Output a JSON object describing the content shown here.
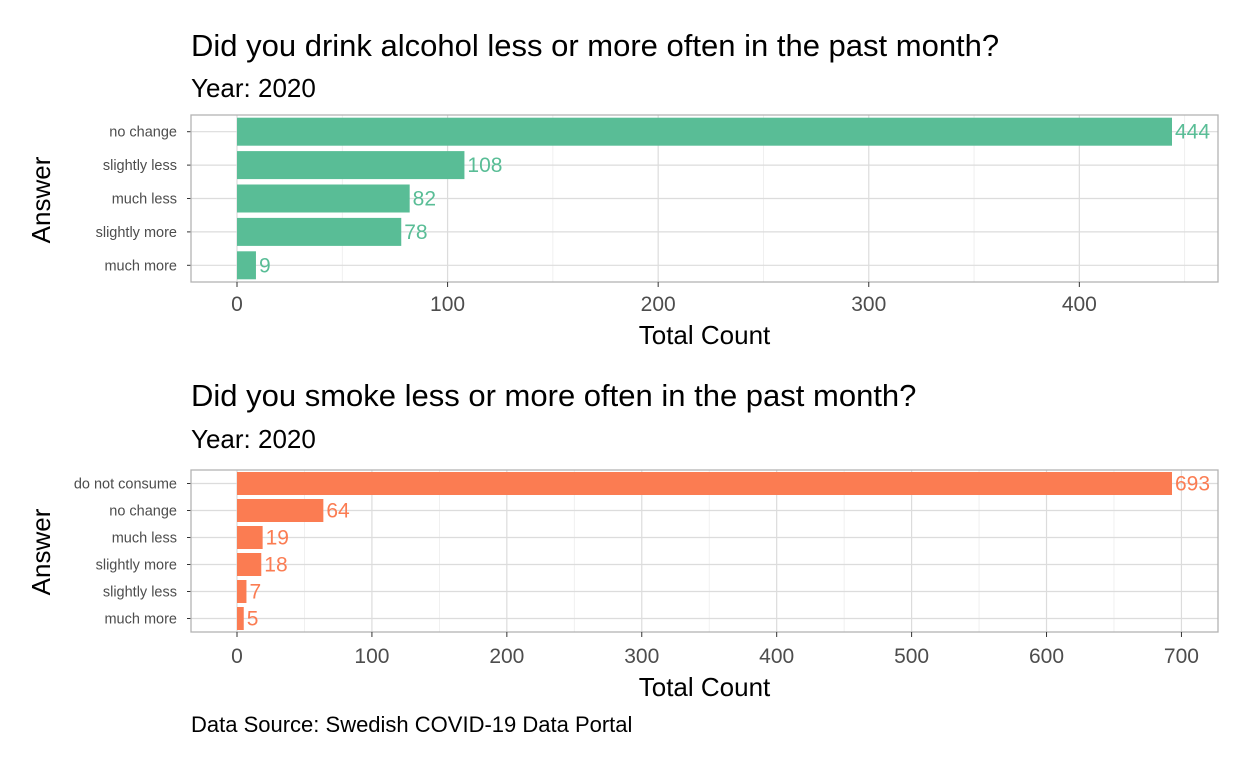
{
  "caption": "Data Source: Swedish COVID-19 Data Portal",
  "chart_data": [
    {
      "type": "bar",
      "orientation": "horizontal",
      "title": "Did you drink alcohol less or more often in the past month?",
      "subtitle": "Year: 2020",
      "xlabel": "Total Count",
      "ylabel": "Answer",
      "categories": [
        "no change",
        "slightly less",
        "much less",
        "slightly more",
        "much more"
      ],
      "values": [
        444,
        108,
        82,
        78,
        9
      ],
      "xlim": [
        0,
        466
      ],
      "xticks": [
        0,
        100,
        200,
        300,
        400
      ],
      "grid": true,
      "bar_color": "#59bd96",
      "label_color": "#59bd96"
    },
    {
      "type": "bar",
      "orientation": "horizontal",
      "title": "Did you smoke less or more often in the past month?",
      "subtitle": "Year: 2020",
      "xlabel": "Total Count",
      "ylabel": "Answer",
      "categories": [
        "do not consume",
        "no change",
        "much less",
        "slightly more",
        "slightly less",
        "much more"
      ],
      "values": [
        693,
        64,
        19,
        18,
        7,
        5
      ],
      "xlim": [
        0,
        727
      ],
      "xticks": [
        0,
        100,
        200,
        300,
        400,
        500,
        600,
        700
      ],
      "grid": true,
      "bar_color": "#fb7c52",
      "label_color": "#fb7c52"
    }
  ]
}
